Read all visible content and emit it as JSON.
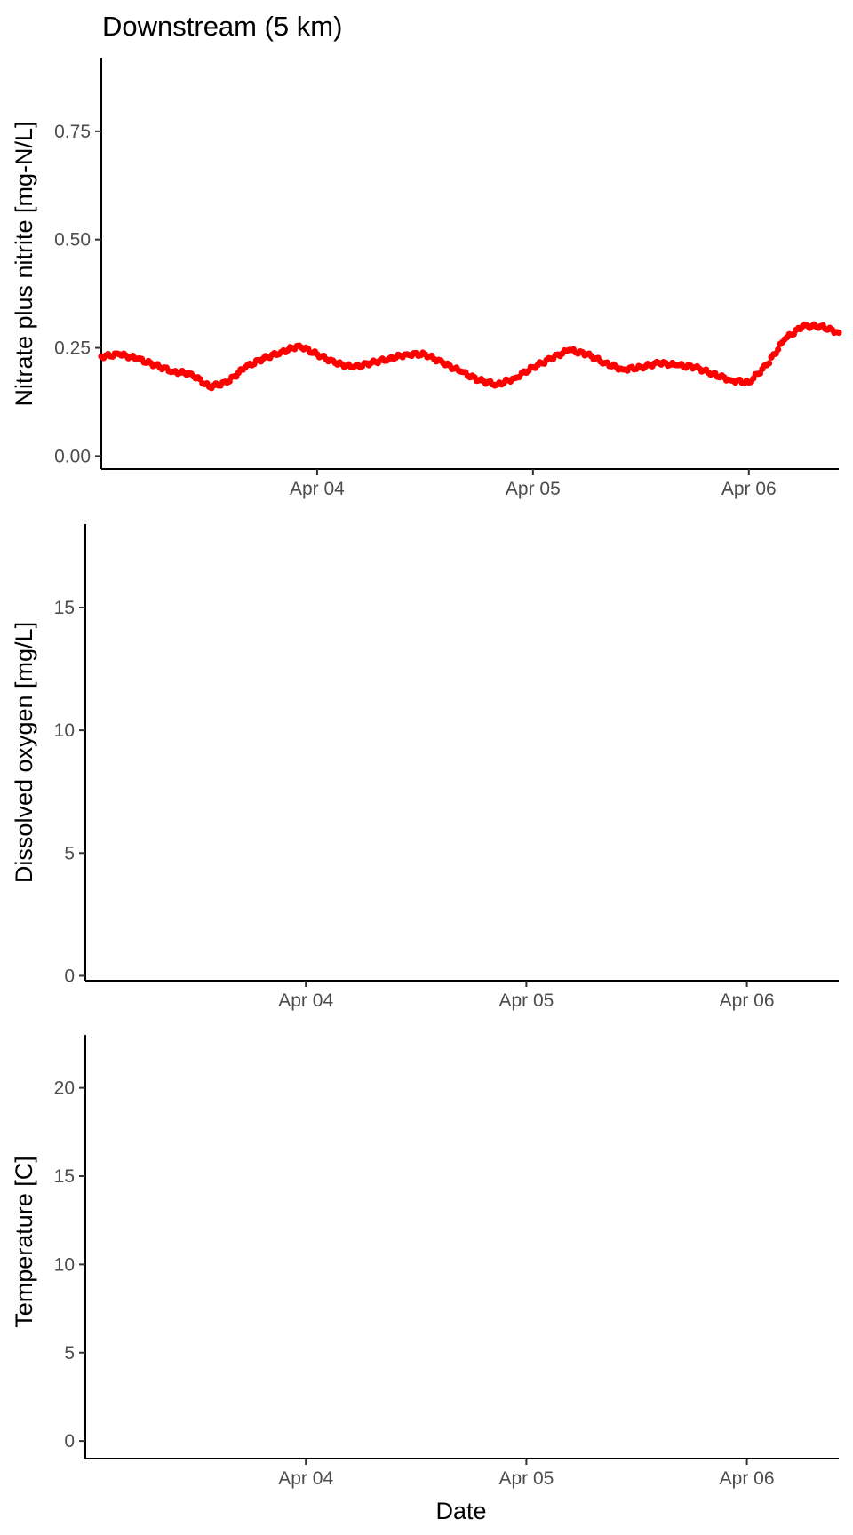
{
  "chart_data": [
    {
      "type": "scatter",
      "title": "Downstream (5 km)",
      "xlabel": "",
      "ylabel": "Nitrate plus nitrite [mg-N/L]",
      "x_ticks": [
        "Apr 04",
        "Apr 05",
        "Apr 06"
      ],
      "y_ticks": [
        "0.00",
        "0.25",
        "0.50",
        "0.75"
      ],
      "xlim": [
        "2023-04-03T00:00",
        "2023-04-06T10:00"
      ],
      "ylim": [
        -0.03,
        0.92
      ],
      "grid": false,
      "color": "#ff0000",
      "series": [
        {
          "x": [
            "2023-04-03T00:00",
            "2023-04-03T02:00",
            "2023-04-03T04:00",
            "2023-04-03T06:00",
            "2023-04-03T08:00",
            "2023-04-03T10:00",
            "2023-04-03T12:00",
            "2023-04-03T14:00",
            "2023-04-03T16:00",
            "2023-04-03T18:00",
            "2023-04-03T20:00",
            "2023-04-03T22:00",
            "2023-04-04T00:00",
            "2023-04-04T02:00",
            "2023-04-04T04:00",
            "2023-04-04T06:00",
            "2023-04-04T08:00",
            "2023-04-04T10:00",
            "2023-04-04T12:00",
            "2023-04-04T14:00",
            "2023-04-04T16:00",
            "2023-04-04T18:00",
            "2023-04-04T20:00",
            "2023-04-04T22:00",
            "2023-04-05T00:00",
            "2023-04-05T02:00",
            "2023-04-05T04:00",
            "2023-04-05T06:00",
            "2023-04-05T08:00",
            "2023-04-05T10:00",
            "2023-04-05T12:00",
            "2023-04-05T14:00",
            "2023-04-05T16:00",
            "2023-04-05T18:00",
            "2023-04-05T20:00",
            "2023-04-05T22:00",
            "2023-04-06T00:00",
            "2023-04-06T02:00",
            "2023-04-06T04:00",
            "2023-04-06T06:00",
            "2023-04-06T08:00",
            "2023-04-06T10:00"
          ],
          "y": [
            0.23,
            0.235,
            0.225,
            0.21,
            0.195,
            0.19,
            0.16,
            0.17,
            0.205,
            0.225,
            0.24,
            0.255,
            0.235,
            0.215,
            0.205,
            0.215,
            0.225,
            0.235,
            0.235,
            0.215,
            0.195,
            0.175,
            0.165,
            0.18,
            0.205,
            0.225,
            0.245,
            0.235,
            0.215,
            0.2,
            0.205,
            0.215,
            0.21,
            0.205,
            0.19,
            0.175,
            0.17,
            0.21,
            0.27,
            0.3,
            0.3,
            0.285
          ]
        }
      ]
    },
    {
      "type": "scatter",
      "title": "",
      "xlabel": "",
      "ylabel": "Dissolved oxygen [mg/L]",
      "x_ticks": [
        "Apr 04",
        "Apr 05",
        "Apr 06"
      ],
      "y_ticks": [
        "0",
        "5",
        "10",
        "15"
      ],
      "xlim": [
        "2023-04-03T00:00",
        "2023-04-06T10:00"
      ],
      "ylim": [
        -0.2,
        18.4
      ],
      "grid": false,
      "series": []
    },
    {
      "type": "scatter",
      "title": "",
      "xlabel": "Date",
      "ylabel": "Temperature [C]",
      "x_ticks": [
        "Apr 04",
        "Apr 05",
        "Apr 06"
      ],
      "y_ticks": [
        "0",
        "5",
        "10",
        "15",
        "20"
      ],
      "xlim": [
        "2023-04-03T00:00",
        "2023-04-06T10:00"
      ],
      "ylim": [
        -1.0,
        23.0
      ],
      "grid": false,
      "series": []
    }
  ]
}
